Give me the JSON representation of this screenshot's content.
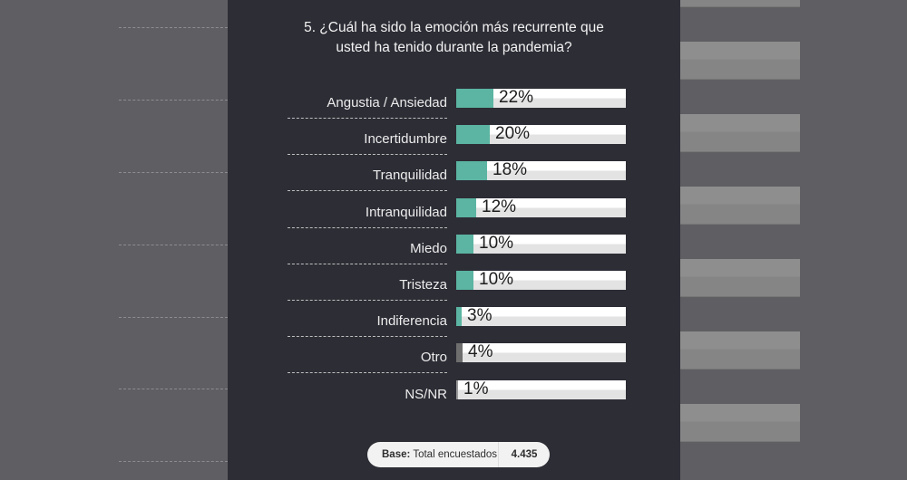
{
  "title": "5. ¿Cuál ha sido la emoción más recurrente que\nusted  ha tenido durante la pandemia?",
  "colors": {
    "fill_primary": "#5bb5a2",
    "fill_other": "#6e6e6e",
    "panel": "#2d2d36",
    "background": "#5f5f63"
  },
  "base": {
    "label_bold": "Base:",
    "label": "Total encuestados",
    "value": "4.435"
  },
  "chart_data": {
    "type": "bar",
    "orientation": "horizontal",
    "title": "5. ¿Cuál ha sido la emoción más recurrente que usted ha tenido durante la pandemia?",
    "categories": [
      "Angustia / Ansiedad",
      "Incertidumbre",
      "Tranquilidad",
      "Intranquilidad",
      "Miedo",
      "Tristeza",
      "Indiferencia",
      "Otro",
      "NS/NR"
    ],
    "values": [
      22,
      20,
      18,
      12,
      10,
      10,
      3,
      4,
      1
    ],
    "labels": [
      "22%",
      "20%",
      "18%",
      "12%",
      "10%",
      "10%",
      "3%",
      "4%",
      "1%"
    ],
    "unit": "%",
    "xlim": [
      0,
      100
    ],
    "xlabel": "",
    "ylabel": "",
    "grid": false,
    "legend": null,
    "note": "Base: Total encuestados 4.435"
  }
}
